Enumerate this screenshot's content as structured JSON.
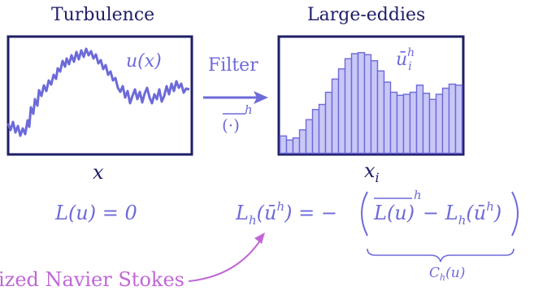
{
  "titles": {
    "left": "Turbulence",
    "right": "Large-eddies"
  },
  "left_panel": {
    "curve_label": "u(x)",
    "axis_label": "x"
  },
  "right_panel": {
    "bar_label_base": "ū",
    "bar_label_sub": "i",
    "bar_label_sup": "h",
    "axis_label": "x",
    "axis_label_sub": "i",
    "bar_heights": [
      0.17,
      0.13,
      0.15,
      0.23,
      0.33,
      0.43,
      0.48,
      0.6,
      0.73,
      0.83,
      0.93,
      0.98,
      0.99,
      0.97,
      0.91,
      0.81,
      0.7,
      0.6,
      0.57,
      0.58,
      0.6,
      0.67,
      0.59,
      0.53,
      0.58,
      0.64,
      0.68,
      0.67
    ]
  },
  "arrow": {
    "label": "Filter",
    "operator_dot": "(·)",
    "operator_sup": "h"
  },
  "equations": {
    "left": "L(u) = 0",
    "right_lhs": "L",
    "right_sub": "h",
    "right_args": "(ū",
    "right_args_sup": "h",
    "right_eq": ") = −",
    "bracket_term1": "L(u)",
    "bracket_term1_sup": "h",
    "bracket_minus": "− L",
    "bracket_sub": "h",
    "bracket_term2": "(ū",
    "bracket_term2_sup": "h",
    "bracket_close": ")",
    "brace_label": "C",
    "brace_label_sub": "h",
    "brace_label_arg": "(u)"
  },
  "callout": {
    "text": "ized Navier Stokes"
  },
  "colors": {
    "navy": "#1e1e66",
    "purple": "#6d6ad9",
    "bar_fill": "#c9c7f5",
    "magenta": "#c067d6"
  }
}
